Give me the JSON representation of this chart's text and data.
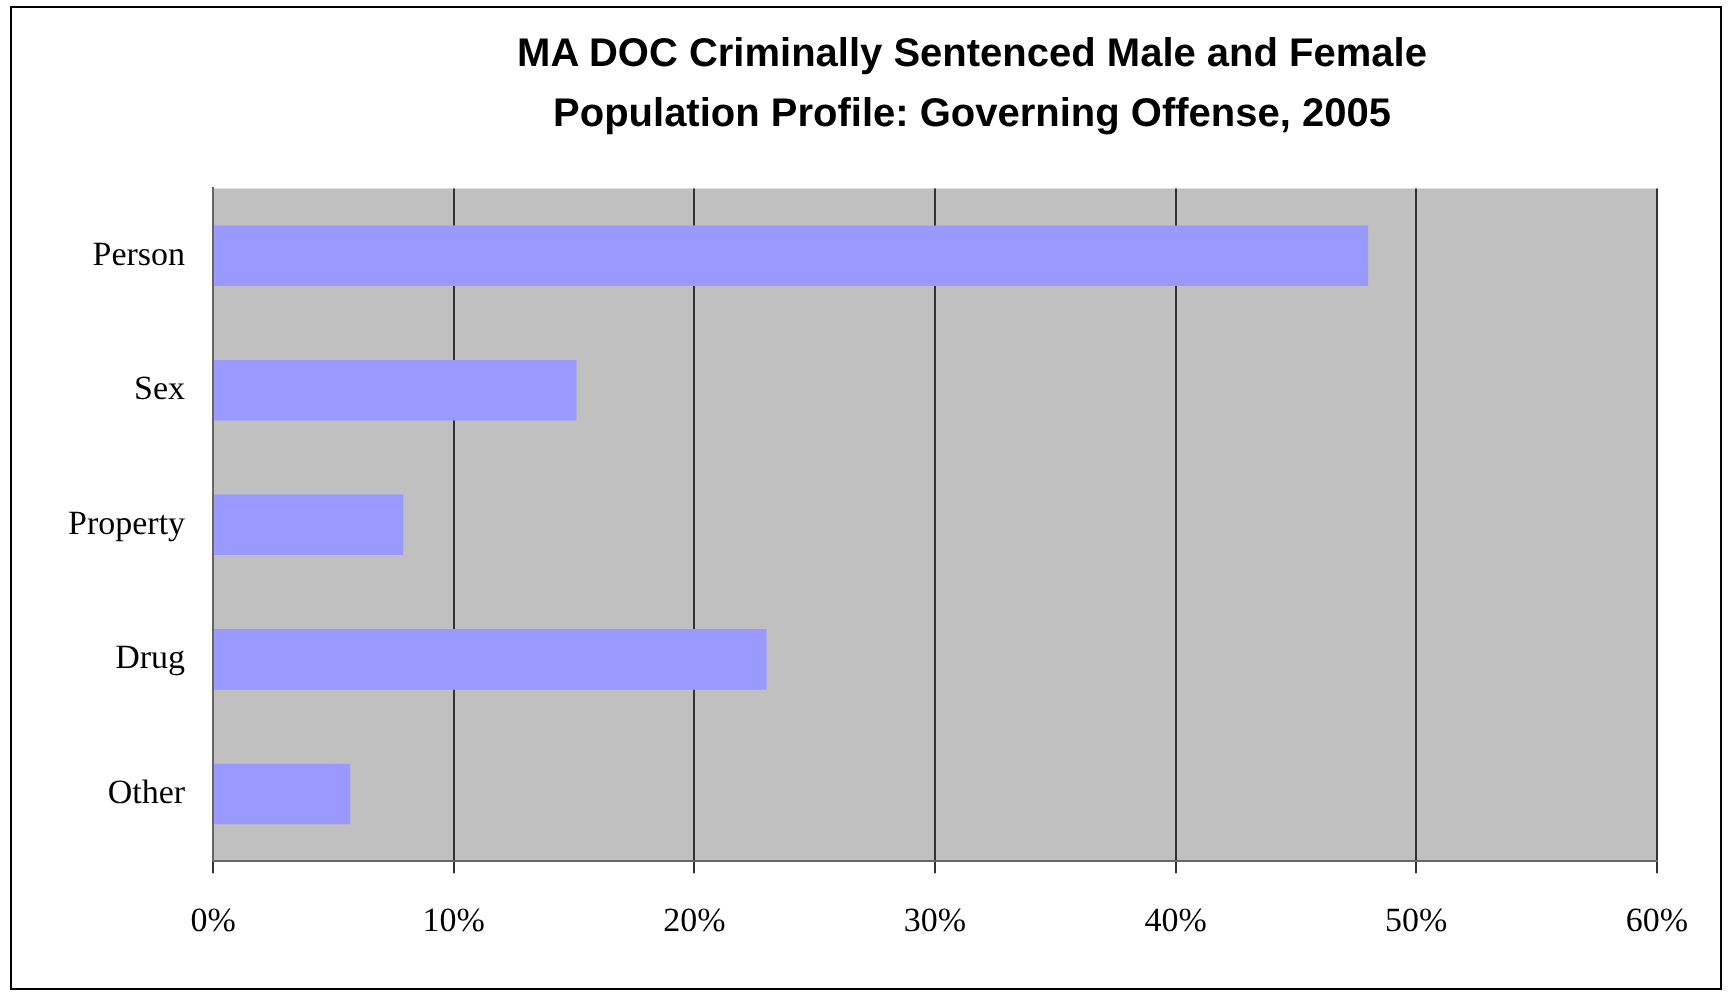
{
  "chart_data": {
    "type": "bar",
    "orientation": "horizontal",
    "title": "MA DOC Criminally Sentenced Male and Female Population Profile: Governing Offense, 2005",
    "categories": [
      "Person",
      "Sex",
      "Property",
      "Drug",
      "Other"
    ],
    "values": [
      48.0,
      15.1,
      7.9,
      23.0,
      5.7
    ],
    "color": "#9999ff",
    "xlim": [
      0,
      60
    ],
    "xticks": [
      {
        "value": 0,
        "label": "0%"
      },
      {
        "value": 10,
        "label": "10%"
      },
      {
        "value": 20,
        "label": "20%"
      },
      {
        "value": 30,
        "label": "30%"
      },
      {
        "value": 40,
        "label": "40%"
      },
      {
        "value": 50,
        "label": "50%"
      },
      {
        "value": 60,
        "label": "60%"
      }
    ],
    "grid": "x",
    "legend": false
  }
}
